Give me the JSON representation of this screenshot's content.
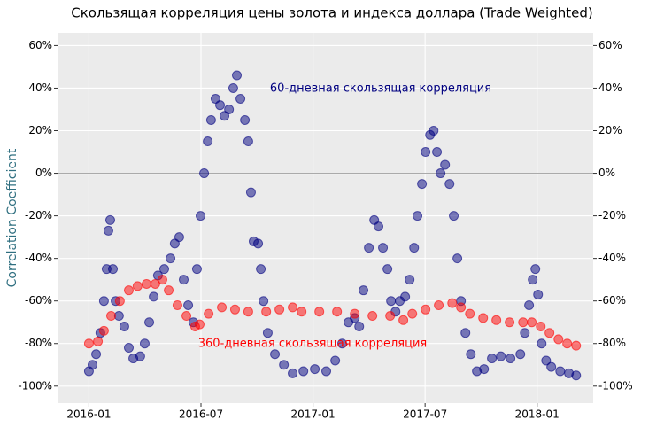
{
  "chart_data": {
    "type": "scatter",
    "title": "Скользящая корреляция цены золота и индекса доллара (Trade Weighted)",
    "y_label": "Correlation Coefficient",
    "xlim": [
      2015.86,
      2018.25
    ],
    "xticks": [
      {
        "value": 2016.0,
        "label": "2016-01"
      },
      {
        "value": 2016.5,
        "label": "2016-07"
      },
      {
        "value": 2017.0,
        "label": "2017-01"
      },
      {
        "value": 2017.5,
        "label": "2017-07"
      },
      {
        "value": 2018.0,
        "label": "2018-01"
      }
    ],
    "ylim": [
      -108,
      66
    ],
    "yticks": [
      {
        "value": -100,
        "label": "-100%"
      },
      {
        "value": -80,
        "label": "-80%"
      },
      {
        "value": -60,
        "label": "-60%"
      },
      {
        "value": -40,
        "label": "-40%"
      },
      {
        "value": -20,
        "label": "-20%"
      },
      {
        "value": 0,
        "label": "0%"
      },
      {
        "value": 20,
        "label": "20%"
      },
      {
        "value": 40,
        "label": "40%"
      },
      {
        "value": 60,
        "label": "60%"
      }
    ],
    "hline": 0,
    "grid": true,
    "series": [
      {
        "name": "60-дневная скользящая корреляция",
        "color": "#000080",
        "x": [
          2016.0,
          2016.016,
          2016.032,
          2016.051,
          2016.067,
          2016.079,
          2016.087,
          2016.095,
          2016.107,
          2016.119,
          2016.134,
          2016.158,
          2016.178,
          2016.198,
          2016.229,
          2016.249,
          2016.269,
          2016.289,
          2016.308,
          2016.336,
          2016.364,
          2016.383,
          2016.403,
          2016.423,
          2016.443,
          2016.466,
          2016.482,
          2016.498,
          2016.514,
          2016.53,
          2016.545,
          2016.565,
          2016.585,
          2016.605,
          2016.625,
          2016.644,
          2016.66,
          2016.676,
          2016.696,
          2016.711,
          2016.723,
          2016.735,
          2016.755,
          2016.767,
          2016.779,
          2016.798,
          2016.83,
          2016.87,
          2016.909,
          2016.957,
          2017.008,
          2017.059,
          2017.099,
          2017.13,
          2017.158,
          2017.186,
          2017.206,
          2017.225,
          2017.249,
          2017.273,
          2017.292,
          2017.312,
          2017.332,
          2017.348,
          2017.368,
          2017.387,
          2017.411,
          2017.431,
          2017.451,
          2017.466,
          2017.486,
          2017.502,
          2017.522,
          2017.538,
          2017.553,
          2017.569,
          2017.589,
          2017.609,
          2017.628,
          2017.644,
          2017.66,
          2017.68,
          2017.704,
          2017.731,
          2017.763,
          2017.798,
          2017.838,
          2017.881,
          2017.925,
          2017.945,
          2017.964,
          2017.98,
          2017.992,
          2018.004,
          2018.02,
          2018.04,
          2018.063,
          2018.103,
          2018.142,
          2018.174
        ],
        "values": [
          -93,
          -90,
          -85,
          -75,
          -60,
          -45,
          -27,
          -22,
          -45,
          -60,
          -67,
          -72,
          -82,
          -87,
          -86,
          -80,
          -70,
          -58,
          -48,
          -45,
          -40,
          -33,
          -30,
          -50,
          -62,
          -70,
          -45,
          -20,
          0,
          15,
          25,
          35,
          32,
          27,
          30,
          40,
          46,
          35,
          25,
          15,
          -9,
          -32,
          -33,
          -45,
          -60,
          -75,
          -85,
          -90,
          -94,
          -93,
          -92,
          -93,
          -88,
          -80,
          -70,
          -68,
          -72,
          -55,
          -35,
          -22,
          -25,
          -35,
          -45,
          -60,
          -65,
          -60,
          -58,
          -50,
          -35,
          -20,
          -5,
          10,
          18,
          20,
          10,
          0,
          4,
          -5,
          -20,
          -40,
          -60,
          -75,
          -85,
          -93,
          -92,
          -87,
          -86,
          -87,
          -85,
          -75,
          -62,
          -50,
          -45,
          -57,
          -80,
          -88,
          -91,
          -93,
          -94,
          -95
        ]
      },
      {
        "name": "360-дневная скользящая корреляция",
        "color": "#ff0000",
        "x": [
          2016.0,
          2016.04,
          2016.067,
          2016.099,
          2016.138,
          2016.178,
          2016.217,
          2016.257,
          2016.296,
          2016.328,
          2016.356,
          2016.395,
          2016.435,
          2016.474,
          2016.494,
          2016.534,
          2016.593,
          2016.652,
          2016.711,
          2016.791,
          2016.85,
          2016.909,
          2016.949,
          2017.028,
          2017.107,
          2017.186,
          2017.265,
          2017.344,
          2017.403,
          2017.443,
          2017.502,
          2017.561,
          2017.621,
          2017.66,
          2017.7,
          2017.759,
          2017.818,
          2017.877,
          2017.937,
          2017.976,
          2018.016,
          2018.055,
          2018.095,
          2018.134,
          2018.174
        ],
        "values": [
          -80,
          -79,
          -74,
          -67,
          -60,
          -55,
          -53,
          -52,
          -52,
          -50,
          -55,
          -62,
          -67,
          -72,
          -71,
          -66,
          -63,
          -64,
          -65,
          -65,
          -64,
          -63,
          -65,
          -65,
          -65,
          -66,
          -67,
          -67,
          -69,
          -66,
          -64,
          -62,
          -61,
          -63,
          -66,
          -68,
          -69,
          -70,
          -70,
          -70,
          -72,
          -75,
          -78,
          -80,
          -81
        ]
      }
    ]
  }
}
